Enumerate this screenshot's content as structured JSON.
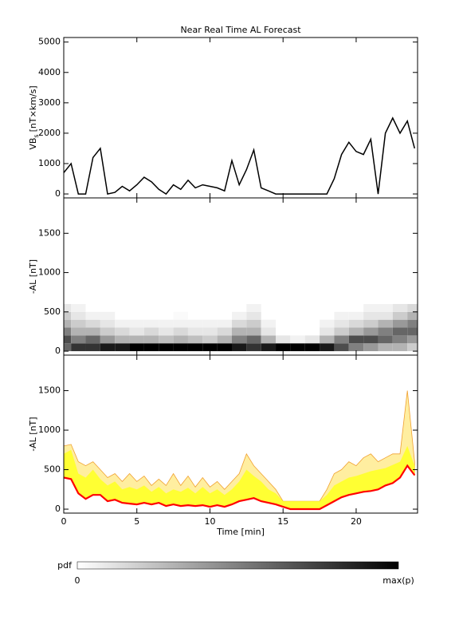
{
  "chart_data": [
    {
      "type": "line",
      "title": "Near Real Time AL Forecast",
      "ylabel": "VB",
      "ylabel_sub": "s",
      "ylabel_unit": "[nT×km/s]",
      "color": "#000000",
      "x": [
        0,
        0.5,
        1,
        1.5,
        2,
        2.5,
        3,
        3.5,
        4,
        4.5,
        5,
        5.5,
        6,
        6.5,
        7,
        7.5,
        8,
        8.5,
        9,
        9.5,
        10,
        10.5,
        11,
        11.5,
        12,
        12.5,
        13,
        13.5,
        14,
        14.5,
        15,
        15.5,
        16,
        16.5,
        17,
        17.5,
        18,
        18.5,
        19,
        19.5,
        20,
        20.5,
        21,
        21.5,
        22,
        22.5,
        23,
        23.5,
        24
      ],
      "values": [
        700,
        1000,
        0,
        0,
        1200,
        1500,
        0,
        50,
        250,
        100,
        300,
        550,
        400,
        150,
        0,
        300,
        150,
        450,
        200,
        300,
        250,
        200,
        100,
        1100,
        300,
        800,
        1450,
        200,
        100,
        0,
        0,
        0,
        0,
        0,
        0,
        0,
        0,
        500,
        1300,
        1700,
        1400,
        1300,
        1800,
        0,
        2000,
        2500,
        2000,
        2400,
        1500
      ],
      "xlim": [
        0,
        24.2
      ],
      "xticks": [
        0,
        5,
        10,
        15,
        20
      ],
      "ylim": [
        -130,
        5150
      ],
      "yticks": [
        0,
        1000,
        2000,
        3000,
        4000,
        5000
      ]
    },
    {
      "type": "heatmap",
      "ylabel": "-AL [nT]",
      "x": [
        0,
        1,
        2,
        3,
        4,
        5,
        6,
        7,
        8,
        9,
        10,
        11,
        12,
        13,
        14,
        15,
        16,
        17,
        18,
        19,
        20,
        21,
        22,
        23,
        24
      ],
      "y_bins": [
        0,
        100,
        200,
        300,
        400,
        500,
        600
      ],
      "z": [
        [
          0.6,
          0.7,
          0.5,
          0.3,
          0.2,
          0.1
        ],
        [
          0.8,
          0.5,
          0.3,
          0.2,
          0.1,
          0.05
        ],
        [
          0.8,
          0.6,
          0.3,
          0.15,
          0.05,
          0
        ],
        [
          0.9,
          0.4,
          0.2,
          0.1,
          0.05,
          0
        ],
        [
          0.9,
          0.3,
          0.15,
          0.05,
          0,
          0
        ],
        [
          1,
          0.3,
          0.1,
          0.05,
          0,
          0
        ],
        [
          1,
          0.3,
          0.15,
          0.05,
          0,
          0
        ],
        [
          1,
          0.25,
          0.1,
          0.05,
          0,
          0
        ],
        [
          1,
          0.3,
          0.15,
          0.05,
          0.02,
          0
        ],
        [
          1,
          0.25,
          0.1,
          0.05,
          0,
          0
        ],
        [
          1,
          0.2,
          0.1,
          0.05,
          0,
          0
        ],
        [
          1,
          0.3,
          0.15,
          0.05,
          0,
          0
        ],
        [
          0.9,
          0.5,
          0.3,
          0.15,
          0.05,
          0
        ],
        [
          0.8,
          0.6,
          0.3,
          0.2,
          0.1,
          0.05
        ],
        [
          0.9,
          0.3,
          0.1,
          0.05,
          0,
          0
        ],
        [
          1,
          0.1,
          0,
          0,
          0,
          0
        ],
        [
          1,
          0.05,
          0,
          0,
          0,
          0
        ],
        [
          1,
          0.1,
          0,
          0,
          0,
          0
        ],
        [
          0.9,
          0.3,
          0.1,
          0.05,
          0,
          0
        ],
        [
          0.7,
          0.5,
          0.2,
          0.1,
          0.05,
          0
        ],
        [
          0.5,
          0.7,
          0.3,
          0.15,
          0.05,
          0
        ],
        [
          0.4,
          0.7,
          0.4,
          0.2,
          0.1,
          0.05
        ],
        [
          0.3,
          0.6,
          0.5,
          0.3,
          0.1,
          0.05
        ],
        [
          0.3,
          0.5,
          0.6,
          0.4,
          0.2,
          0.1
        ],
        [
          0.2,
          0.4,
          0.6,
          0.5,
          0.3,
          0.15
        ]
      ],
      "xlim": [
        0,
        24.2
      ],
      "xticks": [
        0,
        5,
        10,
        15,
        20
      ],
      "ylim": [
        -50,
        1950
      ],
      "yticks": [
        0,
        500,
        1000,
        1500
      ],
      "colorbar": {
        "label": "pdf",
        "min_label": "0",
        "max_label": "max(p)",
        "colors": [
          "#ffffff",
          "#000000"
        ]
      }
    },
    {
      "type": "band",
      "ylabel": "-AL [nT]",
      "xlabel": "Time [min]",
      "xtick_labels": true,
      "x": [
        0,
        0.5,
        1,
        1.5,
        2,
        2.5,
        3,
        3.5,
        4,
        4.5,
        5,
        5.5,
        6,
        6.5,
        7,
        7.5,
        8,
        8.5,
        9,
        9.5,
        10,
        10.5,
        11,
        11.5,
        12,
        12.5,
        13,
        13.5,
        14,
        14.5,
        15,
        15.5,
        16,
        16.5,
        17,
        17.5,
        18,
        18.5,
        19,
        19.5,
        20,
        20.5,
        21,
        21.5,
        22,
        22.5,
        23,
        23.5,
        24
      ],
      "line": {
        "color": "#ff0000",
        "values": [
          400,
          380,
          200,
          130,
          180,
          180,
          100,
          120,
          80,
          70,
          60,
          80,
          60,
          80,
          40,
          60,
          40,
          50,
          40,
          50,
          30,
          50,
          30,
          60,
          100,
          120,
          140,
          100,
          80,
          60,
          30,
          0,
          0,
          0,
          0,
          0,
          50,
          100,
          150,
          180,
          200,
          220,
          230,
          250,
          300,
          330,
          400,
          550,
          430
        ]
      },
      "band": {
        "color": "#ffff33",
        "values": [
          700,
          750,
          450,
          400,
          500,
          380,
          300,
          350,
          250,
          280,
          250,
          300,
          220,
          280,
          200,
          250,
          220,
          270,
          200,
          280,
          200,
          250,
          180,
          250,
          350,
          500,
          420,
          350,
          250,
          200,
          100,
          100,
          100,
          100,
          100,
          100,
          180,
          300,
          350,
          400,
          420,
          450,
          480,
          500,
          520,
          560,
          600,
          800,
          550
        ]
      },
      "envelope": {
        "color": "#ffeea0",
        "edge_color": "#f0a030",
        "values": [
          800,
          820,
          600,
          550,
          600,
          500,
          400,
          450,
          350,
          450,
          350,
          420,
          300,
          380,
          300,
          450,
          300,
          420,
          280,
          400,
          280,
          350,
          250,
          350,
          450,
          700,
          550,
          450,
          350,
          250,
          100,
          100,
          100,
          100,
          100,
          100,
          250,
          450,
          500,
          600,
          550,
          650,
          700,
          600,
          650,
          700,
          700,
          1500,
          600
        ]
      },
      "xlim": [
        0,
        24.2
      ],
      "xticks": [
        0,
        5,
        10,
        15,
        20
      ],
      "ylim": [
        -50,
        1950
      ],
      "yticks": [
        0,
        500,
        1000,
        1500
      ]
    }
  ]
}
